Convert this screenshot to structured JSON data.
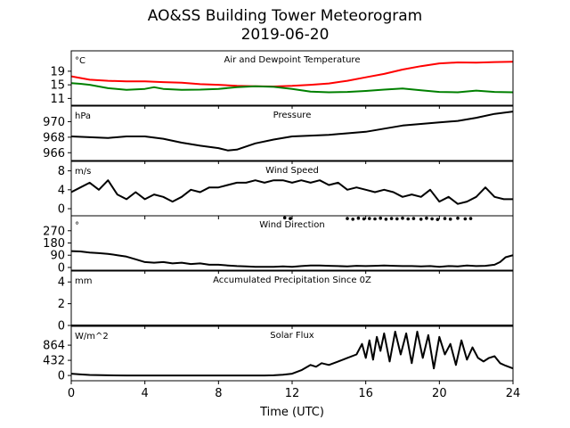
{
  "title_line1": "AO&SS Building Tower Meteorogram",
  "title_line2": "2019-06-20",
  "chart_data": {
    "type": "line",
    "xlabel": "Time (UTC)",
    "xlim": [
      0,
      24
    ],
    "xticks": [
      0,
      4,
      8,
      12,
      16,
      20,
      24
    ],
    "panels": [
      {
        "id": "temperature",
        "label": "Air and Dewpoint Temperature",
        "unit": "°C",
        "ylim": [
          9,
          25
        ],
        "yticks": [
          11,
          15,
          19
        ],
        "series": [
          {
            "color": "#ff0000",
            "x": [
              0,
              0.5,
              1,
              2,
              3,
              4,
              5,
              6,
              7,
              8,
              9,
              10,
              11,
              12,
              13,
              14,
              15,
              16,
              17,
              18,
              19,
              20,
              21,
              22,
              23,
              24
            ],
            "y": [
              17.5,
              17.0,
              16.5,
              16.2,
              16.0,
              16.0,
              15.8,
              15.6,
              15.2,
              15.0,
              14.7,
              14.6,
              14.5,
              14.7,
              15.0,
              15.4,
              16.2,
              17.2,
              18.2,
              19.5,
              20.5,
              21.3,
              21.6,
              21.5,
              21.7,
              21.8
            ]
          },
          {
            "color": "#008000",
            "x": [
              0,
              0.5,
              1,
              2,
              3,
              4,
              4.5,
              5,
              6,
              7,
              8,
              9,
              10,
              11,
              12,
              13,
              14,
              15,
              16,
              17,
              18,
              19,
              20,
              21,
              22,
              23,
              24
            ],
            "y": [
              15.5,
              15.3,
              15.0,
              14.0,
              13.5,
              13.8,
              14.3,
              13.8,
              13.5,
              13.6,
              13.8,
              14.3,
              14.6,
              14.4,
              13.8,
              13.0,
              12.8,
              12.9,
              13.2,
              13.6,
              13.9,
              13.4,
              12.9,
              12.8,
              13.3,
              12.9,
              12.8
            ]
          }
        ]
      },
      {
        "id": "pressure",
        "label": "Pressure",
        "unit": "hPa",
        "ylim": [
          965,
          972
        ],
        "yticks": [
          966,
          968,
          970
        ],
        "series": [
          {
            "color": "#000000",
            "x": [
              0,
              1,
              2,
              3,
              4,
              5,
              6,
              7,
              8,
              8.5,
              9,
              9.5,
              10,
              11,
              12,
              13,
              14,
              15,
              16,
              17,
              18,
              19,
              20,
              21,
              22,
              23,
              24
            ],
            "y": [
              968.1,
              968.0,
              967.9,
              968.1,
              968.1,
              967.8,
              967.3,
              966.9,
              966.6,
              966.3,
              966.4,
              966.8,
              967.2,
              967.7,
              968.1,
              968.2,
              968.3,
              968.5,
              968.7,
              969.1,
              969.5,
              969.7,
              969.9,
              970.1,
              970.5,
              971.0,
              971.3
            ]
          }
        ]
      },
      {
        "id": "wind_speed",
        "label": "Wind Speed",
        "unit": "m/s",
        "ylim": [
          -1.5,
          10
        ],
        "yticks": [
          0,
          4,
          8
        ],
        "series": [
          {
            "color": "#000000",
            "x": [
              0,
              0.5,
              1,
              1.5,
              2,
              2.5,
              3,
              3.5,
              4,
              4.5,
              5,
              5.5,
              6,
              6.5,
              7,
              7.5,
              8,
              8.5,
              9,
              9.5,
              10,
              10.5,
              11,
              11.5,
              12,
              12.5,
              13,
              13.5,
              14,
              14.5,
              15,
              15.5,
              16,
              16.5,
              17,
              17.5,
              18,
              18.5,
              19,
              19.5,
              20,
              20.5,
              21,
              21.5,
              22,
              22.5,
              23,
              23.5,
              24
            ],
            "y": [
              3.5,
              4.5,
              5.5,
              4.0,
              6.0,
              3.0,
              2.0,
              3.5,
              2.0,
              3.0,
              2.5,
              1.5,
              2.5,
              4.0,
              3.5,
              4.5,
              4.5,
              5.0,
              5.5,
              5.5,
              6.0,
              5.5,
              6.0,
              6.0,
              5.5,
              6.0,
              5.5,
              6.0,
              5.0,
              5.5,
              4.0,
              4.5,
              4.0,
              3.5,
              4.0,
              3.5,
              2.5,
              3.0,
              2.5,
              4.0,
              1.5,
              2.5,
              1.0,
              1.5,
              2.5,
              4.5,
              2.5,
              2.0,
              2.0
            ]
          }
        ]
      },
      {
        "id": "wind_direction",
        "label": "Wind Direction",
        "unit": "°",
        "ylim": [
          -20,
          380
        ],
        "yticks": [
          0,
          90,
          180,
          270
        ],
        "series": [
          {
            "color": "#000000",
            "x": [
              0,
              0.5,
              1,
              1.5,
              2,
              2.5,
              3,
              3.5,
              4,
              4.5,
              5,
              5.5,
              6,
              6.5,
              7,
              7.5,
              8,
              8.5,
              9,
              9.5,
              10,
              10.5,
              11,
              11.5,
              12,
              12.5,
              13,
              13.5,
              14,
              14.5,
              15,
              15.5,
              16,
              16.5,
              17,
              17.5,
              18,
              18.5,
              19,
              19.5,
              20,
              20.5,
              21,
              21.5,
              22,
              22.5,
              23,
              23.3,
              23.6,
              24
            ],
            "y": [
              120,
              118,
              110,
              105,
              100,
              90,
              80,
              60,
              40,
              35,
              40,
              30,
              35,
              25,
              30,
              20,
              20,
              15,
              10,
              8,
              5,
              5,
              5,
              8,
              5,
              10,
              15,
              15,
              12,
              10,
              8,
              12,
              10,
              12,
              15,
              12,
              10,
              10,
              8,
              10,
              5,
              10,
              8,
              15,
              10,
              12,
              20,
              40,
              75,
              90
            ]
          }
        ],
        "scatter_points": {
          "color": "#000000",
          "x": [
            11.6,
            11.9,
            15.0,
            15.3,
            15.6,
            15.9,
            16.2,
            16.5,
            16.8,
            17.1,
            17.4,
            17.7,
            18.0,
            18.3,
            18.6,
            19.0,
            19.3,
            19.6,
            19.9,
            20.3,
            20.6,
            21.0,
            21.4,
            21.7
          ],
          "y": [
            365,
            360,
            360,
            355,
            362,
            358,
            360,
            357,
            362,
            355,
            360,
            358,
            362,
            357,
            360,
            355,
            362,
            358,
            353,
            360,
            356,
            362,
            358,
            360
          ]
        }
      },
      {
        "id": "precipitation",
        "label": "Accumulated Precipitation Since 0Z",
        "unit": "mm",
        "ylim": [
          0,
          5
        ],
        "yticks": [
          0,
          2,
          4
        ],
        "series": [
          {
            "color": "#000000",
            "x": [
              0,
              24
            ],
            "y": [
              0,
              0
            ]
          }
        ]
      },
      {
        "id": "solar_flux",
        "label": "Solar Flux",
        "unit": "W/m^2",
        "ylim": [
          -150,
          1400
        ],
        "yticks": [
          0,
          432,
          864
        ],
        "series": [
          {
            "color": "#000000",
            "x": [
              0,
              0.5,
              1,
              2,
              3,
              4,
              5,
              6,
              7,
              8,
              9,
              10,
              10.5,
              11,
              11.5,
              12,
              12.5,
              13,
              13.3,
              13.6,
              14,
              14.5,
              15,
              15.5,
              15.8,
              16.0,
              16.2,
              16.4,
              16.6,
              16.8,
              17.0,
              17.3,
              17.6,
              17.9,
              18.2,
              18.5,
              18.8,
              19.1,
              19.4,
              19.7,
              20.0,
              20.3,
              20.6,
              20.9,
              21.2,
              21.5,
              21.8,
              22.1,
              22.4,
              22.7,
              23.0,
              23.3,
              23.6,
              24
            ],
            "y": [
              50,
              30,
              15,
              5,
              0,
              0,
              0,
              0,
              0,
              0,
              0,
              0,
              0,
              5,
              20,
              50,
              150,
              300,
              250,
              350,
              300,
              400,
              500,
              600,
              900,
              500,
              1000,
              450,
              1100,
              700,
              1200,
              400,
              1250,
              600,
              1200,
              350,
              1250,
              500,
              1150,
              200,
              1100,
              600,
              900,
              300,
              1000,
              450,
              800,
              500,
              400,
              500,
              550,
              350,
              280,
              200
            ]
          }
        ]
      }
    ]
  }
}
